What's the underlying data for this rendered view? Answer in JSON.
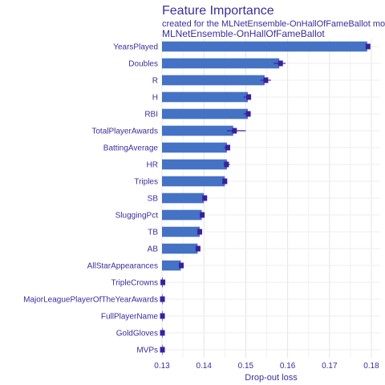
{
  "chart_data": {
    "type": "bar",
    "title": "Feature Importance",
    "subtitle": "created for the MLNetEnsemble-OnHallOfFameBallot model",
    "panel_label": "MLNetEnsemble-OnHallOfFameBallot",
    "xlabel": "Drop-out loss",
    "ylabel": "",
    "baseline": 0.13,
    "xlim": [
      0.13,
      0.18
    ],
    "xticks": [
      "0.13",
      "0.14",
      "0.15",
      "0.16",
      "0.17",
      "0.18"
    ],
    "grid": true,
    "bar_color": "#4472c4",
    "errorbar_color": "#3b1fa0",
    "categories": [
      "YearsPlayed",
      "Doubles",
      "R",
      "H",
      "RBI",
      "TotalPlayerAwards",
      "BattingAverage",
      "HR",
      "Triples",
      "SB",
      "SluggingPct",
      "TB",
      "AB",
      "AllStarAppearances",
      "TripleCrowns",
      "MajorLeaguePlayerOfTheYearAwards",
      "FullPlayerName",
      "GoldGloves",
      "MVPs"
    ],
    "values": [
      0.179,
      0.158,
      0.1545,
      0.1505,
      0.1505,
      0.147,
      0.1455,
      0.1455,
      0.145,
      0.14,
      0.1395,
      0.139,
      0.1385,
      0.1345,
      0.1302,
      0.1301,
      0.1301,
      0.1301,
      0.1301
    ],
    "error_low": [
      0.1787,
      0.1567,
      0.1535,
      0.1495,
      0.1495,
      0.1455,
      0.1448,
      0.1448,
      0.1446,
      0.1397,
      0.139,
      0.1386,
      0.1381,
      0.1343,
      0.1301,
      0.13,
      0.13,
      0.13,
      0.13
    ],
    "error_high": [
      0.1792,
      0.1595,
      0.156,
      0.1512,
      0.1512,
      0.15,
      0.1462,
      0.1462,
      0.1455,
      0.1404,
      0.14,
      0.1394,
      0.1391,
      0.1349,
      0.1303,
      0.1302,
      0.1302,
      0.1302,
      0.1302
    ],
    "point_values": [
      0.1792,
      0.1583,
      0.1548,
      0.1507,
      0.1506,
      0.1473,
      0.1457,
      0.1454,
      0.145,
      0.1402,
      0.1396,
      0.139,
      0.1386,
      0.1346,
      0.1302,
      0.1301,
      0.1301,
      0.1301,
      0.1301
    ]
  }
}
